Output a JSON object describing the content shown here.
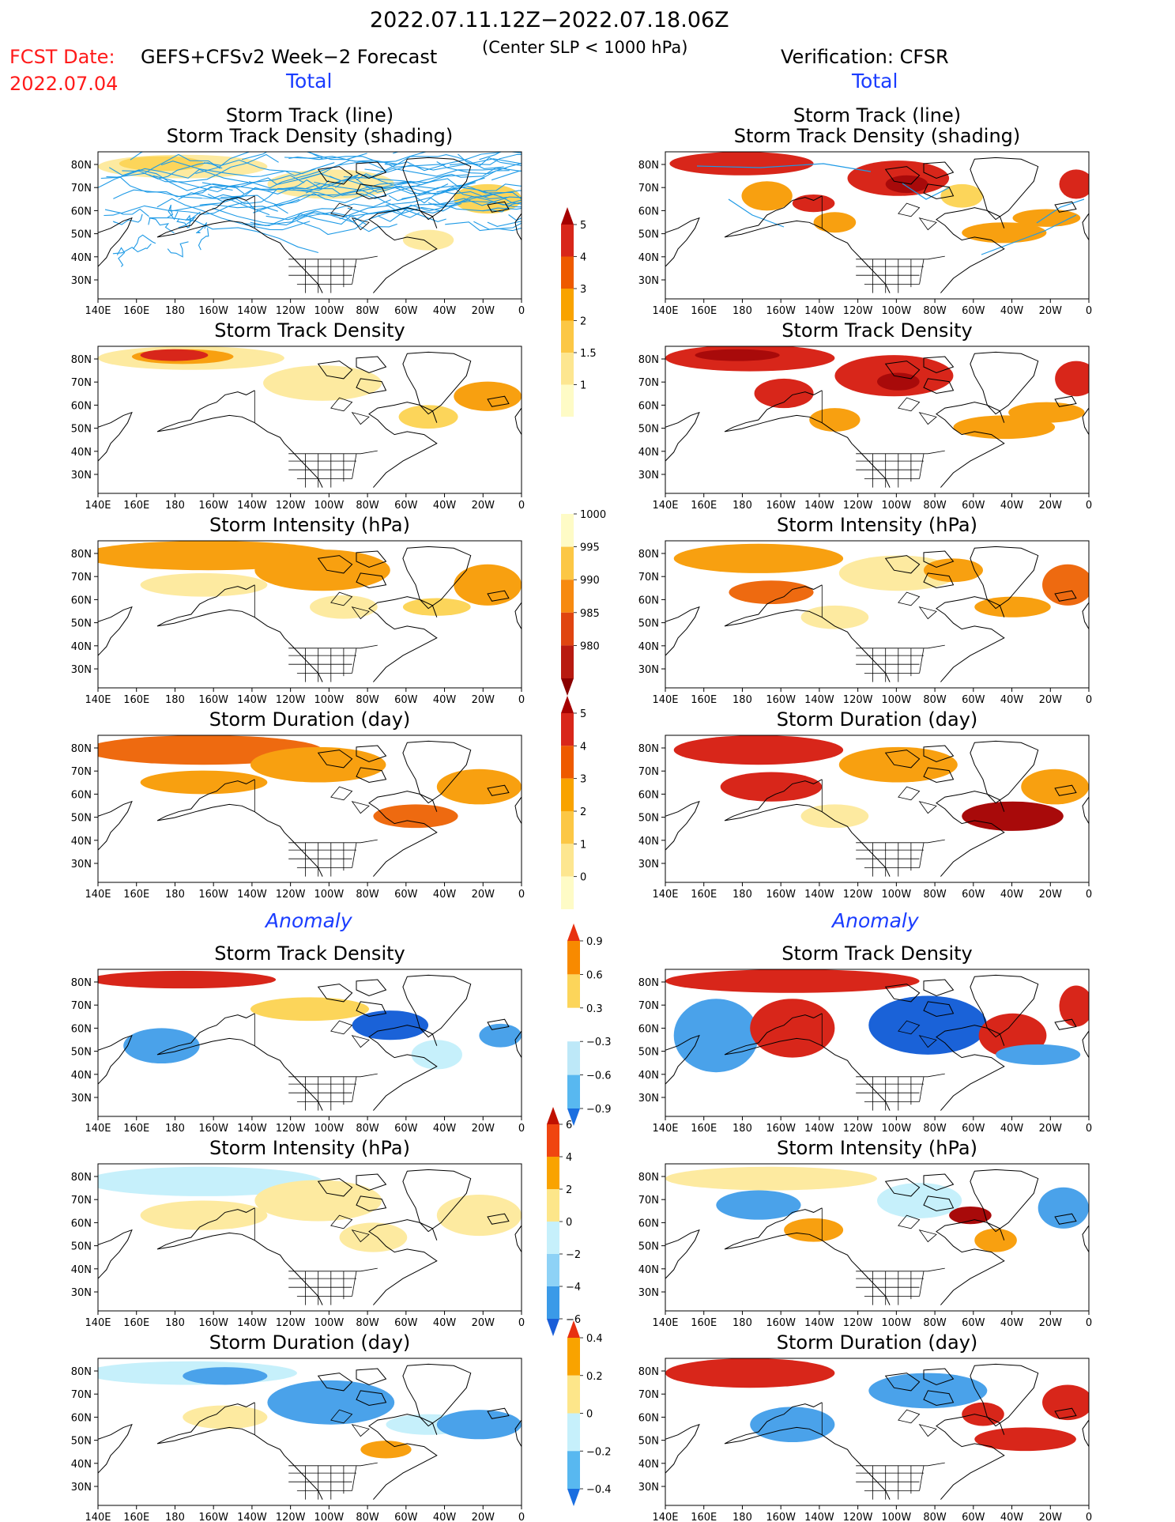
{
  "header": {
    "period": "2022.07.11.12Z−2022.07.18.06Z",
    "fcst_label": "FCST Date:",
    "fcst_date": "2022.07.04",
    "forecast_name": "GEFS+CFSv2 Week−2 Forecast",
    "criterion": "(Center SLP < 1000 hPa)",
    "verification": "Verification: CFSR"
  },
  "sections": {
    "total_left": "Total",
    "total_right": "Total",
    "anomaly_left": "Anomaly",
    "anomaly_right": "Anomaly"
  },
  "panel_titles": {
    "track_line": "Storm Track (line)",
    "track_shading": "Storm Track Density (shading)",
    "density": "Storm Track Density",
    "intensity": "Storm Intensity (hPa)",
    "duration": "Storm Duration (day)"
  },
  "axes": {
    "lat_ticks": [
      "80N",
      "70N",
      "60N",
      "50N",
      "40N",
      "30N"
    ],
    "lon_ticks": [
      "140E",
      "160E",
      "180",
      "160W",
      "140W",
      "120W",
      "100W",
      "80W",
      "60W",
      "40W",
      "20W",
      "0"
    ]
  },
  "colorbars": {
    "density": {
      "labels": [
        "5",
        "4",
        "3",
        "2",
        "1.5",
        "1"
      ],
      "colors": [
        "#a50000",
        "#d8261a",
        "#ee5a00",
        "#f9a300",
        "#fcc745",
        "#fde690",
        "#fefbc6"
      ]
    },
    "intensity": {
      "labels": [
        "1000",
        "995",
        "990",
        "985",
        "980"
      ],
      "colors": [
        "#fefbc6",
        "#fcc745",
        "#f78a10",
        "#e04510",
        "#b81a10",
        "#8a0000"
      ]
    },
    "duration": {
      "labels": [
        "5",
        "4",
        "3",
        "2",
        "1",
        "0"
      ],
      "colors": [
        "#a50000",
        "#d8261a",
        "#ee5a00",
        "#f9a300",
        "#fcc745",
        "#fde690",
        "#fefbc6"
      ]
    },
    "anom_density": {
      "labels": [
        "0.9",
        "0.6",
        "0.3",
        "−0.3",
        "−0.6",
        "−0.9"
      ],
      "colors": [
        "#e83010",
        "#f88a00",
        "#fcd55a",
        "#ffffff",
        "#bde8f8",
        "#58b8f0",
        "#1a6ee0"
      ]
    },
    "anom_intensity": {
      "labels": [
        "6",
        "4",
        "2",
        "0",
        "−2",
        "−4",
        "−6"
      ],
      "colors": [
        "#c01000",
        "#f04510",
        "#f9a300",
        "#fde68a",
        "#c6f0fb",
        "#8ed2f6",
        "#3a9ae8",
        "#1a5ed8"
      ]
    },
    "anom_duration": {
      "labels": [
        "0.4",
        "0.2",
        "0",
        "−0.2",
        "−0.4"
      ],
      "colors": [
        "#e83010",
        "#f9a300",
        "#fde68a",
        "#c6f0fb",
        "#58b8f0",
        "#1a6ee0"
      ]
    }
  },
  "shade_colors": {
    "light": "#fdeaa0",
    "yellow": "#fcd55a",
    "orange": "#f8a010",
    "dorange": "#ee6a10",
    "red": "#d8261a",
    "dred": "#a80a0a",
    "lblue": "#c6f0fb",
    "blue": "#4aa2ea",
    "dblue": "#1a62d8",
    "track": "#1e9ae6"
  }
}
